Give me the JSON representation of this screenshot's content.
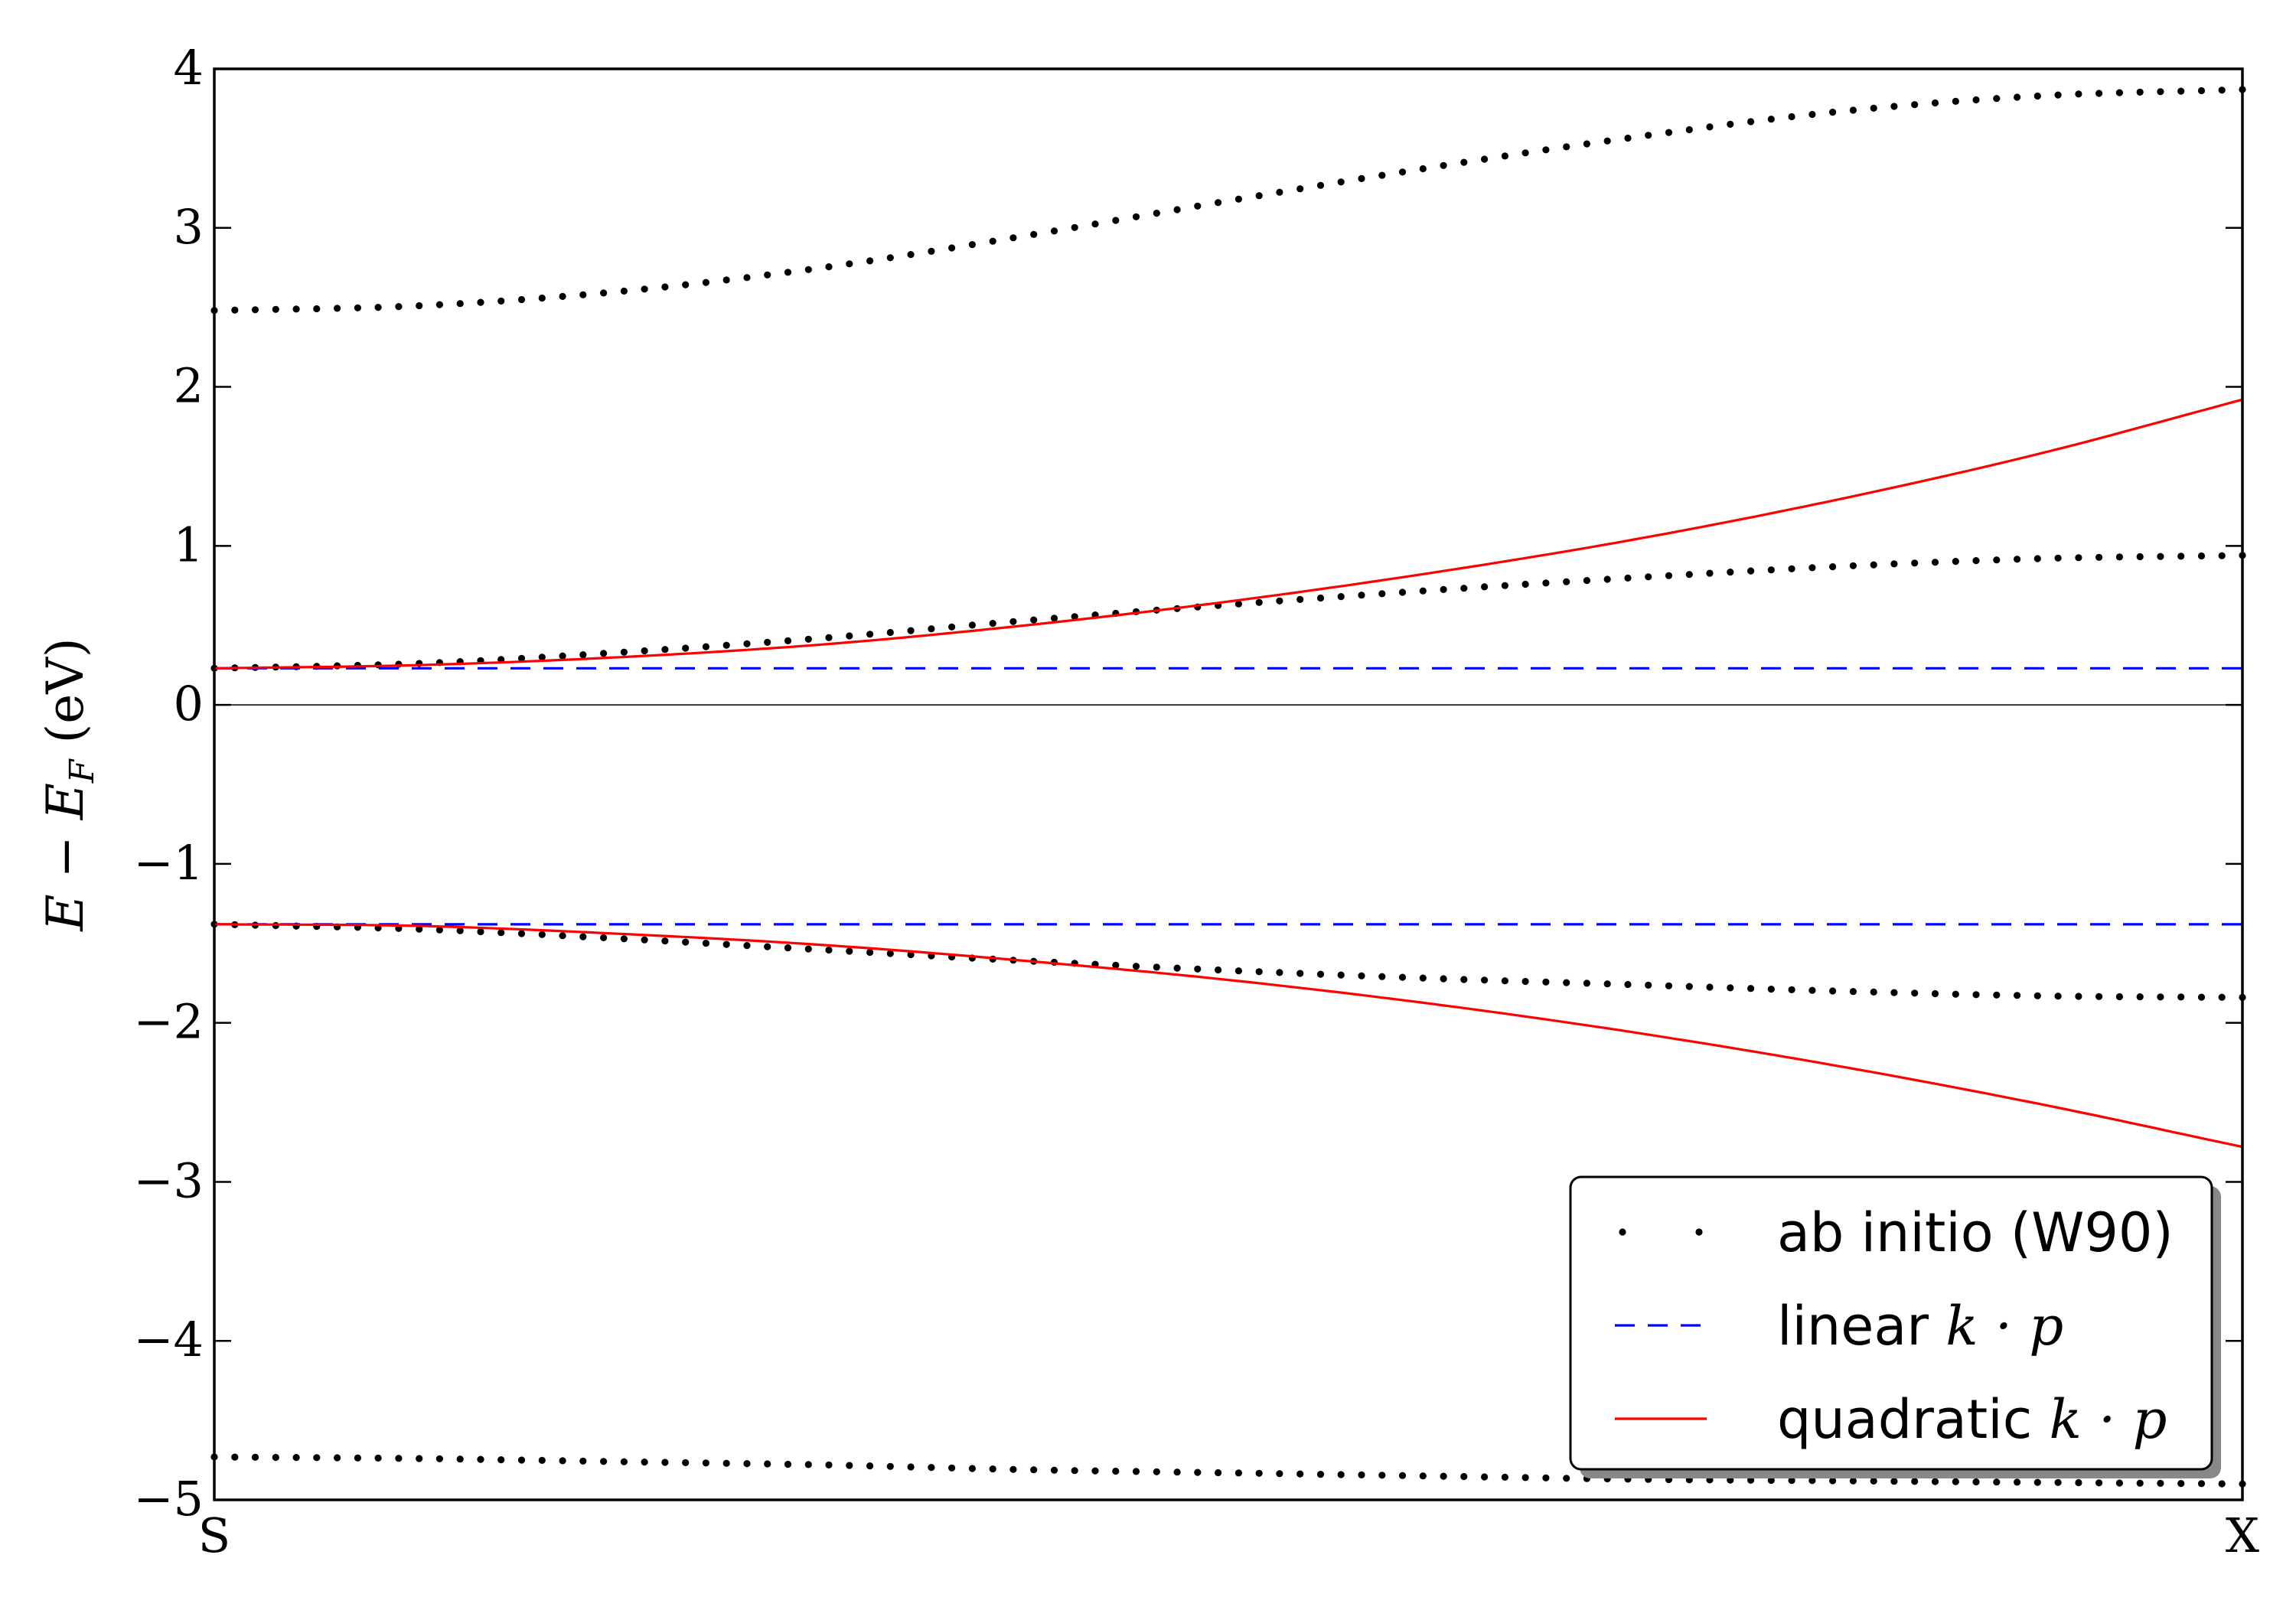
{
  "chart_data": {
    "type": "line",
    "title": "",
    "xlabel": "",
    "ylabel": {
      "main": "E − E",
      "sub": "F",
      "unit": " (eV)"
    },
    "ylim": [
      -5,
      4
    ],
    "yticks": [
      4,
      3,
      2,
      1,
      0,
      -1,
      -2,
      -3,
      -4,
      -5
    ],
    "ytick_labels": [
      "4",
      "3",
      "2",
      "1",
      "0",
      "−1",
      "−2",
      "−3",
      "−4",
      "−5"
    ],
    "xlim": [
      0,
      1
    ],
    "xticks": [
      0,
      1
    ],
    "xtick_labels": [
      "S",
      "X"
    ],
    "reference_line": {
      "y": 0,
      "color": "#000000"
    },
    "legend": {
      "placement": "lower-right",
      "entries": [
        {
          "label": "ab initio (W90)",
          "math": "",
          "style": "dots",
          "color": "#000000"
        },
        {
          "label": "linear ",
          "math": "k · p",
          "style": "dashed",
          "color": "#0000ff"
        },
        {
          "label": "quadratic ",
          "math": "k · p",
          "style": "solid",
          "color": "#ff0000"
        }
      ]
    },
    "series": [
      {
        "name": "ab initio (W90)",
        "style": "dots",
        "color": "#000000",
        "points_per_band": 100,
        "bands": [
          {
            "x": [
              0,
              0.1,
              0.2,
              0.3,
              0.4,
              0.5,
              0.6,
              0.7,
              0.8,
              0.9,
              1.0
            ],
            "y": [
              2.48,
              2.51,
              2.6,
              2.75,
              2.95,
              3.17,
              3.38,
              3.57,
              3.73,
              3.83,
              3.87
            ]
          },
          {
            "x": [
              0,
              0.1,
              0.2,
              0.3,
              0.4,
              0.5,
              0.6,
              0.7,
              0.8,
              0.9,
              1.0
            ],
            "y": [
              0.23,
              0.26,
              0.33,
              0.42,
              0.53,
              0.63,
              0.72,
              0.8,
              0.87,
              0.92,
              0.94
            ]
          },
          {
            "x": [
              0,
              0.1,
              0.2,
              0.3,
              0.4,
              0.5,
              0.6,
              0.7,
              0.8,
              0.9,
              1.0
            ],
            "y": [
              -1.38,
              -1.41,
              -1.47,
              -1.54,
              -1.61,
              -1.67,
              -1.72,
              -1.76,
              -1.8,
              -1.83,
              -1.84
            ]
          },
          {
            "x": [
              0,
              0.1,
              0.2,
              0.3,
              0.4,
              0.5,
              0.6,
              0.7,
              0.8,
              0.9,
              1.0
            ],
            "y": [
              -4.73,
              -4.74,
              -4.76,
              -4.78,
              -4.81,
              -4.83,
              -4.85,
              -4.87,
              -4.88,
              -4.89,
              -4.9
            ]
          }
        ]
      },
      {
        "name": "linear k · p",
        "style": "dashed",
        "color": "#0000ff",
        "bands": [
          {
            "x": [
              0,
              1
            ],
            "y": [
              0.23,
              0.23
            ]
          },
          {
            "x": [
              0,
              1
            ],
            "y": [
              -1.38,
              -1.38
            ]
          }
        ]
      },
      {
        "name": "quadratic k · p",
        "style": "solid",
        "color": "#ff0000",
        "bands": [
          {
            "x": [
              0,
              0.1,
              0.2,
              0.3,
              0.4,
              0.5,
              0.6,
              0.7,
              0.8,
              0.9,
              1.0
            ],
            "y": [
              0.23,
              0.25,
              0.3,
              0.38,
              0.5,
              0.65,
              0.83,
              1.04,
              1.29,
              1.58,
              1.92
            ]
          },
          {
            "x": [
              0,
              0.1,
              0.2,
              0.3,
              0.4,
              0.5,
              0.6,
              0.7,
              0.8,
              0.9,
              1.0
            ],
            "y": [
              -1.38,
              -1.39,
              -1.44,
              -1.51,
              -1.61,
              -1.73,
              -1.88,
              -2.06,
              -2.27,
              -2.51,
              -2.78
            ]
          }
        ]
      }
    ]
  }
}
